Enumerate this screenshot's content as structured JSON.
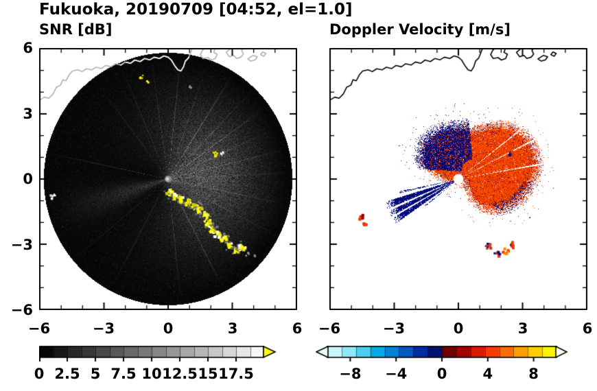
{
  "title": "Fukuoka, 20190709 [04:52, el=1.0]",
  "panels": {
    "snr": {
      "title": "SNR [dB]"
    },
    "velocity": {
      "title": "Doppler Velocity [m/s]"
    }
  },
  "axes": {
    "xlim": [
      -6,
      6
    ],
    "ylim": [
      -6,
      6
    ],
    "major_ticks": [
      -6,
      -3,
      0,
      3,
      6
    ],
    "major_tick_labels": [
      "−6",
      "−3",
      "0",
      "3",
      "6"
    ],
    "minor_step": 1
  },
  "colorbars": {
    "snr": {
      "min": 0,
      "max": 20,
      "segments": 16,
      "tick_values": [
        0,
        2.5,
        5,
        7.5,
        10,
        12.5,
        15,
        17.5
      ],
      "tick_labels": [
        "0",
        "2.5",
        "5",
        "7.5",
        "10",
        "12.5",
        "15",
        "17.5"
      ],
      "over_color": "#ffff00"
    },
    "velocity": {
      "min": -10,
      "max": 10,
      "segments": 16,
      "tick_values": [
        -8,
        -4,
        0,
        4,
        8
      ],
      "tick_labels": [
        "−8",
        "−4",
        "0",
        "4",
        "8"
      ],
      "palette": [
        "#c6f6fa",
        "#8ee8f6",
        "#48d0ee",
        "#00abe6",
        "#0082d6",
        "#0058c2",
        "#002ca6",
        "#001274",
        "#6e0000",
        "#a60000",
        "#d91a00",
        "#f93a00",
        "#ff6c00",
        "#ff9e00",
        "#ffce00",
        "#fff400"
      ],
      "under_color": "#e8feff",
      "over_color": "#fffce8"
    }
  },
  "chart_data": {
    "type": "heatmap",
    "description": "Dual-panel weather radar PPI scan (SNR and Doppler velocity)",
    "site": "Fukuoka",
    "date": "20190709",
    "time": "04:52",
    "elevation_deg": 1.0,
    "x_range_km": [
      -6,
      6
    ],
    "y_range_km": [
      -6,
      6
    ],
    "scan_disk_radius_km": 5.78,
    "panels": [
      {
        "variable": "SNR",
        "units": "dB",
        "scale_min": 0,
        "scale_max": 20
      },
      {
        "variable": "Doppler Velocity",
        "units": "m/s",
        "scale_min": -10,
        "scale_max": 10
      }
    ],
    "features": {
      "coastline": [
        [
          -6,
          3.6
        ],
        [
          -5.75,
          3.75
        ],
        [
          -5.55,
          3.7
        ],
        [
          -5.35,
          3.9
        ],
        [
          -5.2,
          4.2
        ],
        [
          -5,
          4.3
        ],
        [
          -4.9,
          4.55
        ],
        [
          -4.75,
          4.5
        ],
        [
          -4.6,
          4.78
        ],
        [
          -4.45,
          4.95
        ],
        [
          -4.2,
          5.0
        ],
        [
          -4.0,
          4.92
        ],
        [
          -3.8,
          5.05
        ],
        [
          -3.55,
          5.0
        ],
        [
          -3.35,
          5.12
        ],
        [
          -3.1,
          5.06
        ],
        [
          -2.9,
          5.2
        ],
        [
          -2.65,
          5.14
        ],
        [
          -2.45,
          5.28
        ],
        [
          -2.2,
          5.22
        ],
        [
          -2.0,
          5.36
        ],
        [
          -1.75,
          5.3
        ],
        [
          -1.55,
          5.45
        ],
        [
          -1.3,
          5.38
        ],
        [
          -1.1,
          5.52
        ],
        [
          -0.85,
          5.46
        ],
        [
          -0.65,
          5.58
        ],
        [
          -0.4,
          5.52
        ],
        [
          -0.2,
          5.64
        ],
        [
          0,
          5.58
        ],
        [
          0.15,
          5.45
        ],
        [
          0.3,
          5.2
        ],
        [
          0.45,
          5.0
        ],
        [
          0.6,
          4.95
        ],
        [
          0.72,
          5.15
        ],
        [
          0.8,
          5.4
        ],
        [
          0.95,
          5.55
        ],
        [
          1.05,
          5.8
        ],
        [
          1.15,
          6.05
        ]
      ],
      "islands": [
        [
          [
            1.5,
            5.7
          ],
          [
            1.62,
            5.52
          ],
          [
            1.85,
            5.56
          ],
          [
            2.0,
            5.45
          ],
          [
            2.2,
            5.52
          ],
          [
            2.28,
            5.72
          ],
          [
            2.12,
            5.8
          ],
          [
            2.2,
            6.02
          ],
          [
            1.78,
            6.05
          ],
          [
            1.6,
            5.9
          ]
        ],
        [
          [
            2.7,
            5.8
          ],
          [
            2.85,
            5.6
          ],
          [
            3.05,
            5.66
          ],
          [
            3.18,
            5.52
          ],
          [
            3.38,
            5.58
          ],
          [
            3.5,
            5.72
          ],
          [
            3.42,
            5.9
          ],
          [
            3.55,
            6.02
          ],
          [
            3.0,
            6.05
          ]
        ],
        [
          [
            3.7,
            5.5
          ],
          [
            3.85,
            5.4
          ],
          [
            4.05,
            5.46
          ],
          [
            4.15,
            5.6
          ],
          [
            3.95,
            5.66
          ]
        ],
        [
          [
            4.3,
            5.7
          ],
          [
            4.45,
            5.62
          ],
          [
            4.55,
            5.75
          ],
          [
            4.4,
            5.82
          ]
        ]
      ],
      "snr": {
        "haze_azimuth_deg": 8,
        "haze_sigma_deg": 62,
        "west_wedge_azimuth_deg": 197,
        "spokes": [
          [
            84,
            130,
            0.35
          ],
          [
            71,
            95,
            0.3
          ],
          [
            58,
            150,
            0.4
          ],
          [
            46,
            100,
            0.3
          ],
          [
            36,
            140,
            0.35
          ],
          [
            25,
            90,
            0.3
          ],
          [
            14,
            120,
            0.3
          ],
          [
            3,
            90,
            0.3
          ],
          [
            -12,
            110,
            0.3
          ],
          [
            -27,
            85,
            0.3
          ],
          [
            -45,
            100,
            0.3
          ],
          [
            -63,
            130,
            0.35
          ],
          [
            -84,
            100,
            0.3
          ],
          [
            98,
            90,
            0.3
          ],
          [
            113,
            80,
            0.3
          ],
          [
            127,
            70,
            0.3
          ],
          [
            168,
            90,
            0.4
          ],
          [
            -118,
            70,
            0.35
          ],
          [
            -140,
            60,
            0.3
          ]
        ],
        "clutter_arc": [
          [
            0.1,
            -0.62
          ],
          [
            0.38,
            -0.8
          ],
          [
            0.65,
            -0.95
          ],
          [
            0.95,
            -1.1
          ],
          [
            1.25,
            -1.28
          ],
          [
            1.5,
            -1.45
          ],
          [
            1.7,
            -1.7
          ],
          [
            1.85,
            -2.0
          ],
          [
            2.05,
            -2.3
          ],
          [
            2.3,
            -2.55
          ],
          [
            2.6,
            -2.8
          ],
          [
            2.9,
            -3.05
          ],
          [
            3.2,
            -3.25
          ],
          [
            3.45,
            -3.15
          ]
        ],
        "specks": [
          {
            "p": [
              2.2,
              1.12
            ],
            "n": 6,
            "s": 0.12,
            "colors": [
              "#ffff00",
              "#e8e800"
            ]
          },
          {
            "p": [
              2.5,
              1.2
            ],
            "n": 4,
            "s": 0.08,
            "colors": [
              "#ffff00",
              "#ffffff"
            ]
          },
          {
            "p": [
              -1.25,
              4.7
            ],
            "n": 5,
            "s": 0.1,
            "colors": [
              "#ffff00",
              "#c8c800"
            ]
          },
          {
            "p": [
              -0.95,
              4.45
            ],
            "n": 3,
            "s": 0.07,
            "colors": [
              "#ffff00"
            ]
          },
          {
            "p": [
              1.1,
              4.2
            ],
            "n": 5,
            "s": 0.12,
            "colors": [
              "#aaaaaa",
              "#888888"
            ]
          },
          {
            "p": [
              -5.35,
              -0.8
            ],
            "n": 8,
            "s": 0.12,
            "colors": [
              "#ffffff",
              "#dddddd"
            ]
          },
          {
            "p": [
              3.7,
              -3.45
            ],
            "n": 4,
            "s": 0.1,
            "colors": [
              "#999999"
            ]
          },
          {
            "p": [
              4.0,
              -3.52
            ],
            "n": 3,
            "s": 0.08,
            "colors": [
              "#8a8a8a"
            ]
          }
        ]
      },
      "velocity": {
        "hole_radius_km": 0.17,
        "blob_center": [
          0.7,
          0.35
        ],
        "blob_base_radius": 2.05,
        "wedge": {
          "az_from": 197,
          "az_to": 215,
          "radius": 3.6,
          "white_rays": [
            [
              203.5,
              0.9
            ],
            [
              209.5,
              0.7
            ]
          ]
        },
        "extra_rays": [
          [
            192.5,
            1.0,
            2.8
          ],
          [
            218.5,
            0.8,
            2.0
          ]
        ],
        "inbound_sector_deg": [
          95,
          178
        ],
        "patches": [
          {
            "p": [
              -4.55,
              -1.75
            ],
            "n": 10,
            "s": 0.16,
            "colors": [
              "red",
              "darkred"
            ]
          },
          {
            "p": [
              -4.35,
              -2.1
            ],
            "n": 6,
            "s": 0.12,
            "colors": [
              "red"
            ]
          },
          {
            "p": [
              1.4,
              -3.1
            ],
            "n": 9,
            "s": 0.15,
            "colors": [
              "navy",
              "red"
            ]
          },
          {
            "p": [
              1.8,
              -3.42
            ],
            "n": 9,
            "s": 0.15,
            "colors": [
              "red",
              "navy"
            ]
          },
          {
            "p": [
              2.2,
              -3.3
            ],
            "n": 8,
            "s": 0.14,
            "colors": [
              "red",
              "orange"
            ]
          },
          {
            "p": [
              2.55,
              -3.02
            ],
            "n": 8,
            "s": 0.14,
            "colors": [
              "navy",
              "red"
            ]
          },
          {
            "p": [
              2.45,
              1.15
            ],
            "n": 5,
            "s": 0.1,
            "colors": [
              "red",
              "navy"
            ]
          }
        ]
      }
    }
  }
}
